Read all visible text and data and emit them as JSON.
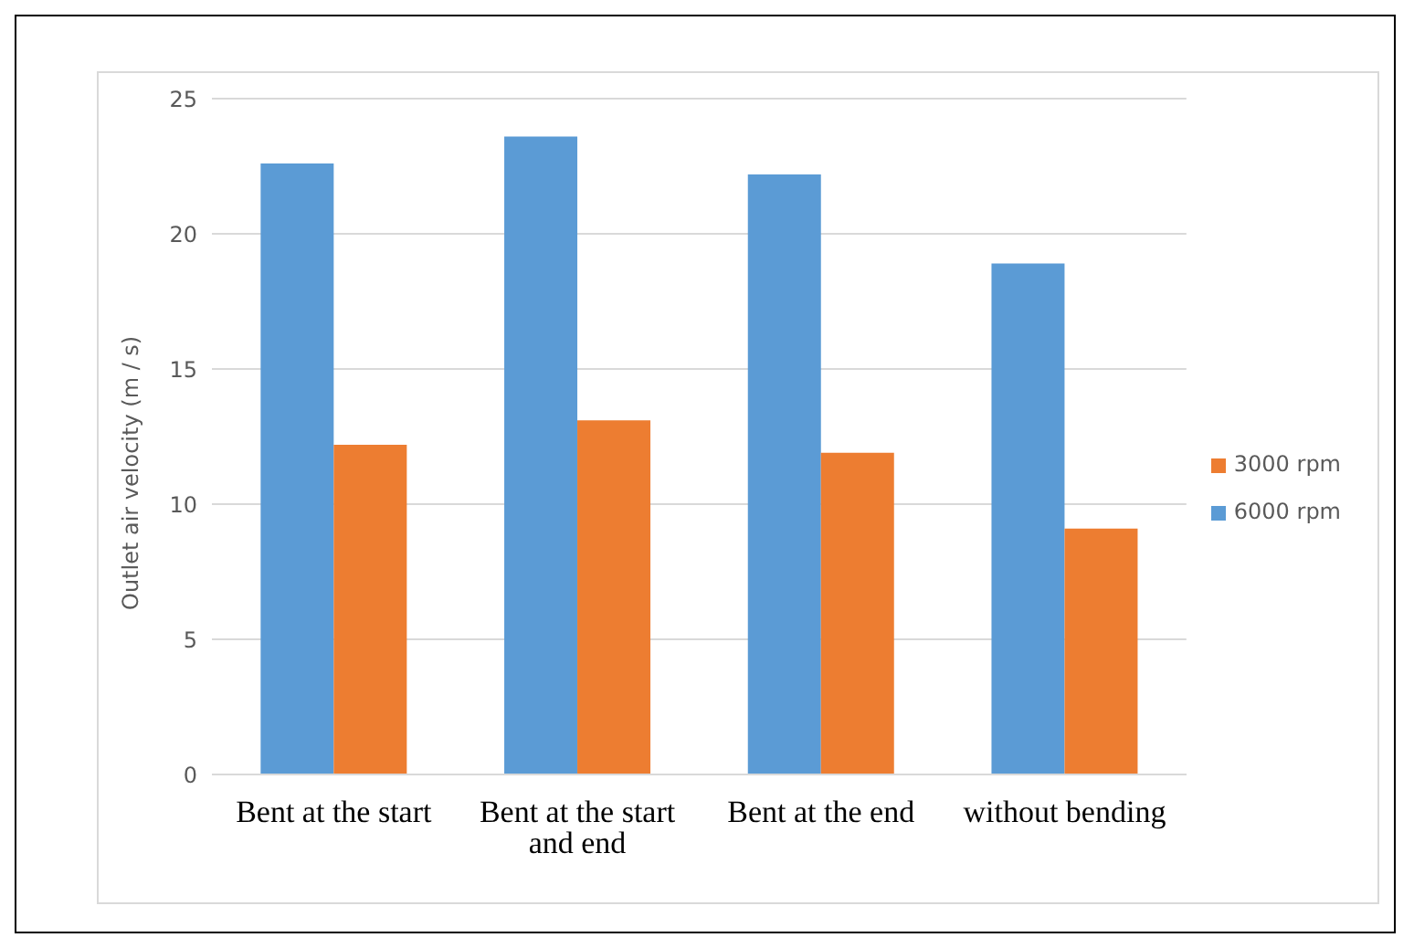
{
  "chart_data": {
    "type": "bar",
    "ylabel": "Outlet air velocity (m / s)",
    "categories": [
      "Bent at the start",
      "Bent at the start and end",
      "Bent at the end",
      "without bending"
    ],
    "series": [
      {
        "name": "6000 rpm",
        "color": "#5b9bd5",
        "values": [
          22.6,
          23.6,
          22.2,
          18.9
        ]
      },
      {
        "name": "3000 rpm",
        "color": "#ed7d31",
        "values": [
          12.2,
          13.1,
          11.9,
          9.1
        ]
      }
    ],
    "ylim": [
      0,
      25
    ],
    "yticks": [
      0,
      5,
      10,
      15,
      20,
      25
    ],
    "grid": "y",
    "legend": "right"
  }
}
